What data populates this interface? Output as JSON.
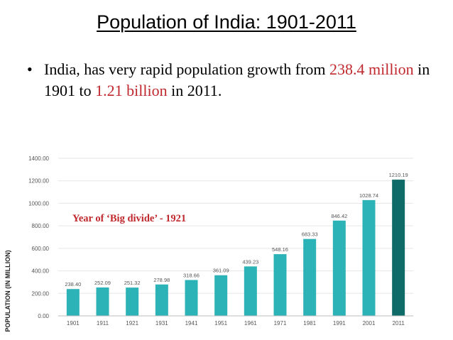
{
  "slide": {
    "title": "Population of India: 1901-2011",
    "bullet_text_1": "India, has very rapid population growth from ",
    "bullet_value_1": "238.4 million",
    "bullet_text_2": " in 1901 to ",
    "bullet_value_2": "1.21 billion",
    "bullet_text_3": " in 2011."
  },
  "colors": {
    "bar": "#2bb3b8",
    "bar_highlight": "#0f6b68",
    "grid": "#e6e6e6",
    "text": "#555555",
    "accent": "#c0282d"
  },
  "chart_data": {
    "type": "bar",
    "title": "",
    "xlabel": "",
    "ylabel": "POPULATION (IN MILLION)",
    "categories": [
      "1901",
      "1911",
      "1921",
      "1931",
      "1941",
      "1951",
      "1961",
      "1971",
      "1981",
      "1991",
      "2001",
      "2011"
    ],
    "values": [
      238.4,
      252.09,
      251.32,
      278.98,
      318.66,
      361.09,
      439.23,
      548.16,
      683.33,
      846.42,
      1028.74,
      1210.19
    ],
    "value_labels": [
      "238.40",
      "252.09",
      "251.32",
      "278.98",
      "318.66",
      "361.09",
      "439.23",
      "548.16",
      "683.33",
      "846.42",
      "1028.74",
      "1210.19"
    ],
    "highlight_index": 11,
    "ylim": [
      0,
      1400
    ],
    "yticks": [
      "0.00",
      "200.00",
      "400.00",
      "600.00",
      "800.00",
      "1000.00",
      "1200.00",
      "1400.00"
    ],
    "grid": true,
    "annotation": "Year of ‘Big divide’ - 1921"
  }
}
